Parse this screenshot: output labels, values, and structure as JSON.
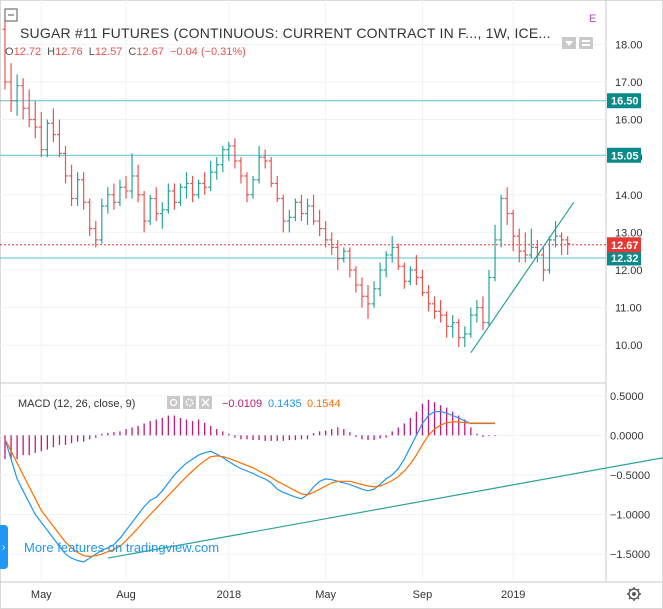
{
  "header": {
    "title": "SUGAR #11 FUTURES (CONTINUOUS: CURRENT CONTRACT IN F..., 1W, ICE...",
    "ohlc": [
      {
        "label": "O",
        "value": "12.72"
      },
      {
        "label": "H",
        "value": "12.76"
      },
      {
        "label": "L",
        "value": "12.57"
      },
      {
        "label": "C",
        "value": "12.67"
      },
      {
        "label": "",
        "value": "−0.04 (−0.31%)"
      }
    ],
    "corner_mark": "E"
  },
  "macd_legend": {
    "label": "MACD (12, 26, close, 9)",
    "values": [
      "−0.0109",
      "0.1435",
      "0.1544"
    ]
  },
  "watermark": "More features on tradingview.com",
  "colors": {
    "up": "#26a69a",
    "down": "#ef5350",
    "hline": "#5bc0c8",
    "trend": "#2aa198",
    "macd": "#2196f3",
    "signal": "#ff6d00",
    "hist": "#c2187a",
    "price_tag": "#e53935",
    "level_tag": "#0b8a8a"
  },
  "chart_data": [
    {
      "type": "candlestick",
      "x_tick_labels": [
        "May",
        "Aug",
        "2018",
        "May",
        "Sep",
        "2019"
      ],
      "y_tick_labels": [
        "18.00",
        "17.00",
        "16.00",
        "15.00",
        "14.00",
        "13.00",
        "12.00",
        "11.00",
        "10.00"
      ],
      "ylim": [
        9.5,
        18.7
      ],
      "grid": true,
      "horizontal_levels": [
        16.5,
        15.05,
        12.32
      ],
      "level_tags": [
        "16.50",
        "15.05",
        "12.32"
      ],
      "last_price": 12.67,
      "last_price_tag": "12.67",
      "trendline": {
        "from": [
          77,
          9.8
        ],
        "to": [
          94,
          13.8
        ]
      },
      "ohlc": [
        [
          18.4,
          18.7,
          16.8,
          17.0
        ],
        [
          17.0,
          17.5,
          16.2,
          16.5
        ],
        [
          16.5,
          17.2,
          16.1,
          16.9
        ],
        [
          16.9,
          17.1,
          16.0,
          16.3
        ],
        [
          16.3,
          16.8,
          15.8,
          16.0
        ],
        [
          16.0,
          16.5,
          15.5,
          15.8
        ],
        [
          15.8,
          16.2,
          15.0,
          15.2
        ],
        [
          15.2,
          16.0,
          15.0,
          15.9
        ],
        [
          15.9,
          16.3,
          15.4,
          15.6
        ],
        [
          15.6,
          16.0,
          15.0,
          15.1
        ],
        [
          15.1,
          15.3,
          14.3,
          14.5
        ],
        [
          14.5,
          14.8,
          13.7,
          13.9
        ],
        [
          13.9,
          14.6,
          13.7,
          14.4
        ],
        [
          14.4,
          14.6,
          13.6,
          13.8
        ],
        [
          13.8,
          13.9,
          12.9,
          13.1
        ],
        [
          13.1,
          13.3,
          12.6,
          12.8
        ],
        [
          12.8,
          13.9,
          12.7,
          13.7
        ],
        [
          13.7,
          14.2,
          13.5,
          14.0
        ],
        [
          14.0,
          14.3,
          13.6,
          13.8
        ],
        [
          13.8,
          14.4,
          13.7,
          14.2
        ],
        [
          14.2,
          14.5,
          13.9,
          14.1
        ],
        [
          14.1,
          15.1,
          13.9,
          14.5
        ],
        [
          14.5,
          14.8,
          13.8,
          14.0
        ],
        [
          14.0,
          14.1,
          13.0,
          13.3
        ],
        [
          13.3,
          14.0,
          13.2,
          13.9
        ],
        [
          13.9,
          14.2,
          13.3,
          13.5
        ],
        [
          13.5,
          13.8,
          13.1,
          13.6
        ],
        [
          13.6,
          14.3,
          13.5,
          14.1
        ],
        [
          14.1,
          14.3,
          13.6,
          13.8
        ],
        [
          13.8,
          14.3,
          13.7,
          14.2
        ],
        [
          14.2,
          14.6,
          13.9,
          14.3
        ],
        [
          14.3,
          14.5,
          13.8,
          14.0
        ],
        [
          14.0,
          14.4,
          13.9,
          14.3
        ],
        [
          14.3,
          14.6,
          14.0,
          14.2
        ],
        [
          14.2,
          14.9,
          14.1,
          14.6
        ],
        [
          14.6,
          15.0,
          14.4,
          14.8
        ],
        [
          14.8,
          15.3,
          14.6,
          15.2
        ],
        [
          15.2,
          15.4,
          14.9,
          15.3
        ],
        [
          15.3,
          15.5,
          14.7,
          14.9
        ],
        [
          14.9,
          15.0,
          14.3,
          14.5
        ],
        [
          14.5,
          14.6,
          13.8,
          14.0
        ],
        [
          14.0,
          14.5,
          13.9,
          14.4
        ],
        [
          14.4,
          15.3,
          14.3,
          15.0
        ],
        [
          15.0,
          15.2,
          14.7,
          14.9
        ],
        [
          14.9,
          15.0,
          14.2,
          14.3
        ],
        [
          14.3,
          14.5,
          13.8,
          13.9
        ],
        [
          13.9,
          14.0,
          13.0,
          13.3
        ],
        [
          13.3,
          13.6,
          13.0,
          13.4
        ],
        [
          13.4,
          13.9,
          13.3,
          13.8
        ],
        [
          13.8,
          14.0,
          13.3,
          13.5
        ],
        [
          13.5,
          13.9,
          13.2,
          13.7
        ],
        [
          13.7,
          14.0,
          13.2,
          13.3
        ],
        [
          13.3,
          13.6,
          12.9,
          13.1
        ],
        [
          13.1,
          13.3,
          12.6,
          12.8
        ],
        [
          12.8,
          13.0,
          12.4,
          12.6
        ],
        [
          12.6,
          12.8,
          12.0,
          12.3
        ],
        [
          12.3,
          12.6,
          12.2,
          12.5
        ],
        [
          12.5,
          12.6,
          11.8,
          12.0
        ],
        [
          12.0,
          12.1,
          11.4,
          11.6
        ],
        [
          11.6,
          11.8,
          11.0,
          11.3
        ],
        [
          11.3,
          11.6,
          10.7,
          11.1
        ],
        [
          11.1,
          11.7,
          11.0,
          11.5
        ],
        [
          11.5,
          12.2,
          11.3,
          12.0
        ],
        [
          12.0,
          12.5,
          11.8,
          12.4
        ],
        [
          12.4,
          12.9,
          12.2,
          12.6
        ],
        [
          12.6,
          12.7,
          12.0,
          12.1
        ],
        [
          12.1,
          12.2,
          11.5,
          11.7
        ],
        [
          11.7,
          12.1,
          11.6,
          12.0
        ],
        [
          12.0,
          12.4,
          11.6,
          11.8
        ],
        [
          11.8,
          12.0,
          11.3,
          11.4
        ],
        [
          11.4,
          11.6,
          10.9,
          11.1
        ],
        [
          11.1,
          11.3,
          10.7,
          10.9
        ],
        [
          10.9,
          11.2,
          10.6,
          10.8
        ],
        [
          10.8,
          10.9,
          10.2,
          10.5
        ],
        [
          10.5,
          10.8,
          10.2,
          10.6
        ],
        [
          10.6,
          10.7,
          9.95,
          10.2
        ],
        [
          10.2,
          10.5,
          9.95,
          10.3
        ],
        [
          10.3,
          11.0,
          10.2,
          10.8
        ],
        [
          10.8,
          11.2,
          10.6,
          11.0
        ],
        [
          11.0,
          11.3,
          10.4,
          10.6
        ],
        [
          10.6,
          12.0,
          10.5,
          11.8
        ],
        [
          11.8,
          13.2,
          11.7,
          12.8
        ],
        [
          12.8,
          14.0,
          12.6,
          13.9
        ],
        [
          13.9,
          14.2,
          13.2,
          13.5
        ],
        [
          13.5,
          13.6,
          12.5,
          12.9
        ],
        [
          12.9,
          13.1,
          12.2,
          12.5
        ],
        [
          12.5,
          13.0,
          12.2,
          12.4
        ],
        [
          12.4,
          13.1,
          12.3,
          12.6
        ],
        [
          12.6,
          12.8,
          12.2,
          12.4
        ],
        [
          12.4,
          12.6,
          11.7,
          12.0
        ],
        [
          12.0,
          12.9,
          11.9,
          12.8
        ],
        [
          12.8,
          13.3,
          12.6,
          12.9
        ],
        [
          12.9,
          13.0,
          12.4,
          12.8
        ],
        [
          12.8,
          12.9,
          12.4,
          12.7
        ]
      ]
    },
    {
      "type": "line",
      "y_tick_labels": [
        "0.5000",
        "0.0000",
        "−0.5000",
        "−1.0000",
        "−1.5000"
      ],
      "ylim": [
        -1.65,
        0.56
      ],
      "grid": true,
      "trendline": {
        "from": [
          17,
          -1.55
        ],
        "to": [
          130,
          0.01
        ]
      },
      "series": [
        {
          "name": "MACD",
          "values": [
            -0.05,
            -0.3,
            -0.55,
            -0.7,
            -0.85,
            -1.0,
            -1.1,
            -1.2,
            -1.3,
            -1.4,
            -1.5,
            -1.55,
            -1.58,
            -1.6,
            -1.55,
            -1.5,
            -1.45,
            -1.42,
            -1.38,
            -1.3,
            -1.2,
            -1.1,
            -1.0,
            -0.9,
            -0.82,
            -0.78,
            -0.7,
            -0.6,
            -0.5,
            -0.42,
            -0.35,
            -0.3,
            -0.25,
            -0.22,
            -0.2,
            -0.24,
            -0.28,
            -0.33,
            -0.38,
            -0.42,
            -0.45,
            -0.48,
            -0.52,
            -0.55,
            -0.6,
            -0.68,
            -0.72,
            -0.75,
            -0.78,
            -0.8,
            -0.75,
            -0.65,
            -0.58,
            -0.55,
            -0.56,
            -0.58,
            -0.6,
            -0.62,
            -0.65,
            -0.68,
            -0.7,
            -0.68,
            -0.62,
            -0.55,
            -0.5,
            -0.42,
            -0.3,
            -0.15,
            0.0,
            0.15,
            0.25,
            0.3,
            0.3,
            0.28,
            0.25,
            0.22,
            0.18,
            0.15,
            0.15,
            0.15,
            0.15,
            0.15
          ]
        },
        {
          "name": "Signal",
          "values": [
            -0.05,
            -0.2,
            -0.35,
            -0.5,
            -0.65,
            -0.8,
            -0.95,
            -1.05,
            -1.15,
            -1.25,
            -1.35,
            -1.42,
            -1.48,
            -1.52,
            -1.53,
            -1.52,
            -1.5,
            -1.47,
            -1.44,
            -1.4,
            -1.33,
            -1.25,
            -1.17,
            -1.08,
            -1.0,
            -0.92,
            -0.84,
            -0.76,
            -0.68,
            -0.6,
            -0.52,
            -0.45,
            -0.38,
            -0.32,
            -0.27,
            -0.26,
            -0.27,
            -0.29,
            -0.32,
            -0.35,
            -0.38,
            -0.41,
            -0.45,
            -0.49,
            -0.53,
            -0.58,
            -0.62,
            -0.66,
            -0.7,
            -0.74,
            -0.75,
            -0.72,
            -0.68,
            -0.64,
            -0.6,
            -0.58,
            -0.58,
            -0.58,
            -0.6,
            -0.62,
            -0.64,
            -0.65,
            -0.64,
            -0.61,
            -0.57,
            -0.52,
            -0.45,
            -0.36,
            -0.25,
            -0.12,
            0.0,
            0.08,
            0.13,
            0.16,
            0.17,
            0.17,
            0.16,
            0.155,
            0.155,
            0.155,
            0.155,
            0.155
          ]
        }
      ],
      "histogram": [
        -0.3,
        -0.3,
        -0.3,
        -0.25,
        -0.25,
        -0.22,
        -0.2,
        -0.18,
        -0.15,
        -0.12,
        -0.12,
        -0.1,
        -0.08,
        -0.08,
        -0.05,
        -0.03,
        0.02,
        0.03,
        0.04,
        0.05,
        0.08,
        0.1,
        0.12,
        0.15,
        0.18,
        0.2,
        0.22,
        0.25,
        0.25,
        0.22,
        0.2,
        0.18,
        0.2,
        0.16,
        0.12,
        0.08,
        0.05,
        0.02,
        -0.03,
        -0.05,
        -0.05,
        -0.06,
        -0.06,
        -0.07,
        -0.07,
        -0.07,
        -0.07,
        -0.06,
        -0.06,
        -0.05,
        -0.05,
        0.03,
        0.05,
        0.06,
        0.08,
        0.1,
        0.08,
        0.04,
        -0.02,
        -0.05,
        -0.06,
        -0.06,
        -0.04,
        -0.03,
        0.05,
        0.1,
        0.15,
        0.22,
        0.3,
        0.4,
        0.45,
        0.42,
        0.38,
        0.35,
        0.3,
        0.25,
        0.2,
        0.1,
        0.02,
        -0.02,
        -0.01,
        -0.01
      ]
    }
  ]
}
